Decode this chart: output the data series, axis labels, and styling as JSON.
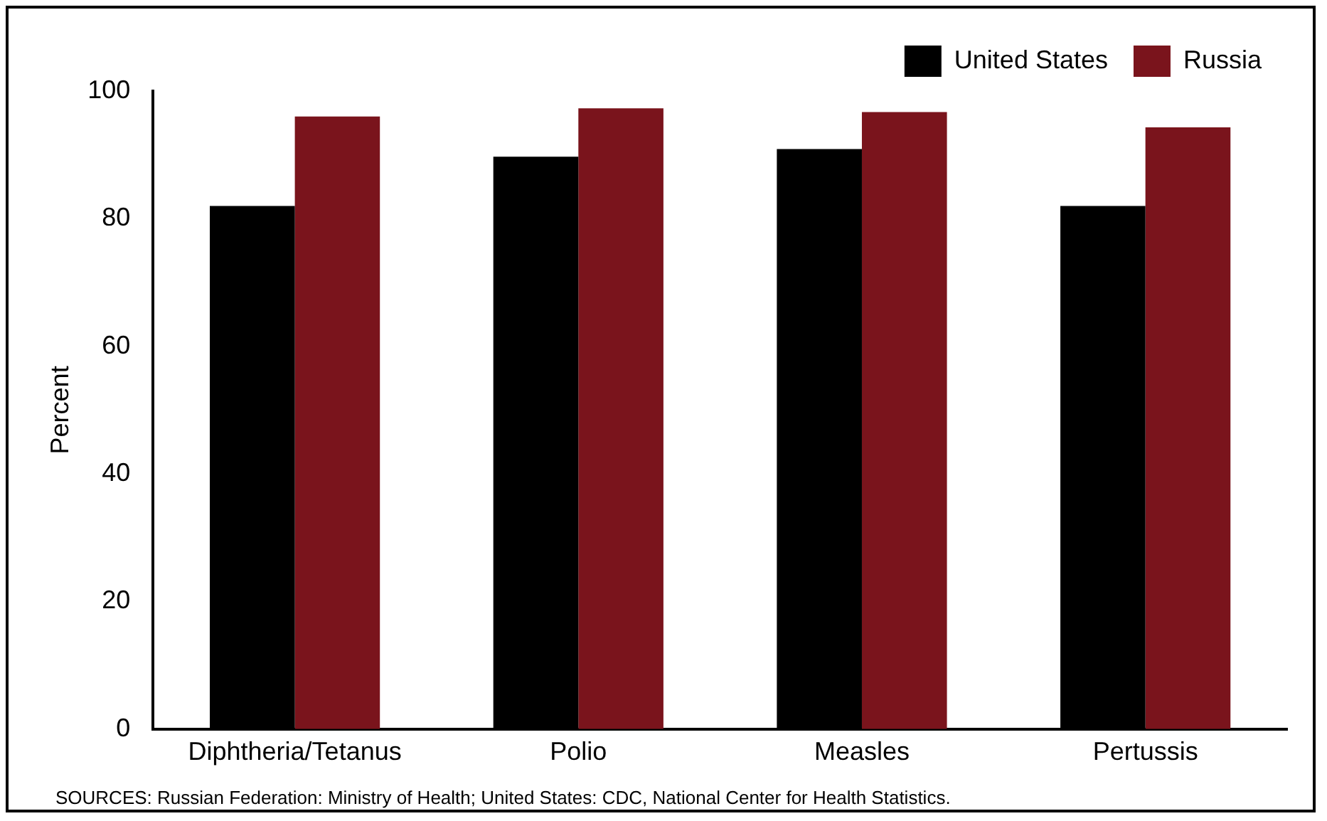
{
  "chart_data": {
    "type": "bar",
    "ylabel": "Percent",
    "categories": [
      "Diphtheria/Tetanus",
      "Polio",
      "Measles",
      "Pertussis"
    ],
    "series": [
      {
        "name": "United States",
        "color": "#000000",
        "values": [
          82,
          89.7,
          90.9,
          82
        ]
      },
      {
        "name": "Russia",
        "color": "#7a141c",
        "values": [
          96,
          97.3,
          96.7,
          94.3
        ]
      }
    ],
    "ylim": [
      0,
      100
    ],
    "yticks": [
      0,
      20,
      40,
      60,
      80,
      100
    ],
    "grid": false,
    "legend": "top right",
    "annotations": [
      "SOURCES:  Russian Federation: Ministry of Health; United States: CDC, National Center for Health Statistics."
    ]
  }
}
